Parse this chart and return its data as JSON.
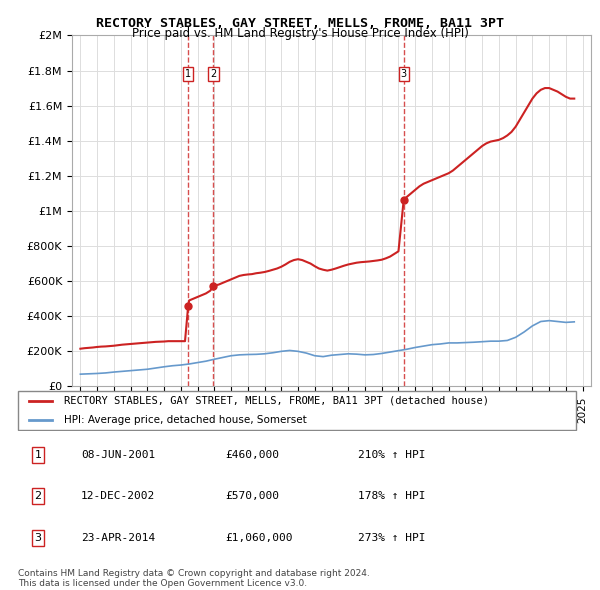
{
  "title": "RECTORY STABLES, GAY STREET, MELLS, FROME, BA11 3PT",
  "subtitle": "Price paid vs. HM Land Registry's House Price Index (HPI)",
  "legend_entry1": "RECTORY STABLES, GAY STREET, MELLS, FROME, BA11 3PT (detached house)",
  "legend_entry2": "HPI: Average price, detached house, Somerset",
  "footer1": "Contains HM Land Registry data © Crown copyright and database right 2024.",
  "footer2": "This data is licensed under the Open Government Licence v3.0.",
  "transactions": [
    {
      "num": 1,
      "date": "08-JUN-2001",
      "price": 460000,
      "hpi_pct": "210% ↑ HPI",
      "year": 2001.44
    },
    {
      "num": 2,
      "date": "12-DEC-2002",
      "price": 570000,
      "hpi_pct": "178% ↑ HPI",
      "year": 2002.95
    },
    {
      "num": 3,
      "date": "23-APR-2014",
      "price": 1060000,
      "hpi_pct": "273% ↑ HPI",
      "year": 2014.31
    }
  ],
  "hpi_color": "#6699cc",
  "price_color": "#cc2222",
  "vline_color": "#cc2222",
  "ylim": [
    0,
    2000000
  ],
  "yticks": [
    0,
    200000,
    400000,
    600000,
    800000,
    1000000,
    1200000,
    1400000,
    1600000,
    1800000,
    2000000
  ],
  "xlim_start": 1994.5,
  "xlim_end": 2025.5,
  "hpi_data_x": [
    1995.0,
    1995.5,
    1996.0,
    1996.5,
    1997.0,
    1997.5,
    1998.0,
    1998.5,
    1999.0,
    1999.5,
    2000.0,
    2000.5,
    2001.0,
    2001.5,
    2002.0,
    2002.5,
    2003.0,
    2003.5,
    2004.0,
    2004.5,
    2005.0,
    2005.5,
    2006.0,
    2006.5,
    2007.0,
    2007.5,
    2008.0,
    2008.5,
    2009.0,
    2009.5,
    2010.0,
    2010.5,
    2011.0,
    2011.5,
    2012.0,
    2012.5,
    2013.0,
    2013.5,
    2014.0,
    2014.5,
    2015.0,
    2015.5,
    2016.0,
    2016.5,
    2017.0,
    2017.5,
    2018.0,
    2018.5,
    2019.0,
    2019.5,
    2020.0,
    2020.5,
    2021.0,
    2021.5,
    2022.0,
    2022.5,
    2023.0,
    2023.5,
    2024.0,
    2024.5
  ],
  "hpi_data_y": [
    70000,
    72000,
    74000,
    77000,
    82000,
    86000,
    90000,
    94000,
    98000,
    105000,
    112000,
    118000,
    122000,
    128000,
    136000,
    144000,
    155000,
    165000,
    175000,
    180000,
    182000,
    183000,
    186000,
    192000,
    200000,
    205000,
    200000,
    190000,
    175000,
    170000,
    178000,
    182000,
    186000,
    184000,
    180000,
    182000,
    188000,
    196000,
    204000,
    212000,
    222000,
    230000,
    238000,
    242000,
    248000,
    248000,
    250000,
    252000,
    255000,
    258000,
    258000,
    262000,
    280000,
    310000,
    345000,
    370000,
    375000,
    370000,
    365000,
    368000
  ],
  "price_data_x": [
    1995.0,
    1995.25,
    1995.5,
    1995.75,
    1996.0,
    1996.25,
    1996.5,
    1996.75,
    1997.0,
    1997.25,
    1997.5,
    1997.75,
    1998.0,
    1998.25,
    1998.5,
    1998.75,
    1999.0,
    1999.25,
    1999.5,
    1999.75,
    2000.0,
    2000.25,
    2000.5,
    2000.75,
    2001.0,
    2001.25,
    2001.44,
    2001.5,
    2001.75,
    2002.0,
    2002.25,
    2002.5,
    2002.75,
    2002.95,
    2003.0,
    2003.25,
    2003.5,
    2003.75,
    2004.0,
    2004.25,
    2004.5,
    2004.75,
    2005.0,
    2005.25,
    2005.5,
    2005.75,
    2006.0,
    2006.25,
    2006.5,
    2006.75,
    2007.0,
    2007.25,
    2007.5,
    2007.75,
    2008.0,
    2008.25,
    2008.5,
    2008.75,
    2009.0,
    2009.25,
    2009.5,
    2009.75,
    2010.0,
    2010.25,
    2010.5,
    2010.75,
    2011.0,
    2011.25,
    2011.5,
    2011.75,
    2012.0,
    2012.25,
    2012.5,
    2012.75,
    2013.0,
    2013.25,
    2013.5,
    2013.75,
    2014.0,
    2014.31,
    2014.5,
    2014.75,
    2015.0,
    2015.25,
    2015.5,
    2015.75,
    2016.0,
    2016.25,
    2016.5,
    2016.75,
    2017.0,
    2017.25,
    2017.5,
    2017.75,
    2018.0,
    2018.25,
    2018.5,
    2018.75,
    2019.0,
    2019.25,
    2019.5,
    2019.75,
    2020.0,
    2020.25,
    2020.5,
    2020.75,
    2021.0,
    2021.25,
    2021.5,
    2021.75,
    2022.0,
    2022.25,
    2022.5,
    2022.75,
    2023.0,
    2023.25,
    2023.5,
    2023.75,
    2024.0,
    2024.25,
    2024.5
  ],
  "price_data_y": [
    215000,
    218000,
    220000,
    222000,
    225000,
    227000,
    228000,
    230000,
    232000,
    235000,
    238000,
    240000,
    242000,
    244000,
    246000,
    248000,
    250000,
    252000,
    254000,
    255000,
    256000,
    258000,
    258000,
    258000,
    258000,
    258000,
    460000,
    490000,
    500000,
    510000,
    520000,
    530000,
    545000,
    570000,
    575000,
    580000,
    590000,
    600000,
    610000,
    620000,
    630000,
    635000,
    638000,
    640000,
    645000,
    648000,
    652000,
    658000,
    665000,
    672000,
    682000,
    695000,
    710000,
    720000,
    725000,
    720000,
    710000,
    700000,
    685000,
    672000,
    665000,
    660000,
    665000,
    672000,
    680000,
    688000,
    695000,
    700000,
    705000,
    708000,
    710000,
    712000,
    715000,
    718000,
    722000,
    730000,
    740000,
    755000,
    770000,
    1060000,
    1080000,
    1100000,
    1120000,
    1140000,
    1155000,
    1165000,
    1175000,
    1185000,
    1195000,
    1205000,
    1215000,
    1230000,
    1250000,
    1270000,
    1290000,
    1310000,
    1330000,
    1350000,
    1370000,
    1385000,
    1395000,
    1400000,
    1405000,
    1415000,
    1430000,
    1450000,
    1480000,
    1520000,
    1560000,
    1600000,
    1640000,
    1670000,
    1690000,
    1700000,
    1700000,
    1690000,
    1680000,
    1665000,
    1650000,
    1640000,
    1640000
  ]
}
